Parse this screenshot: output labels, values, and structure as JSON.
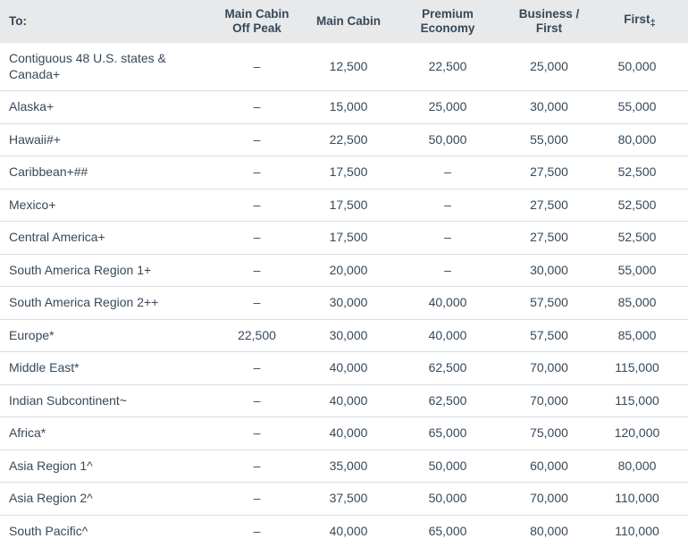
{
  "colors": {
    "header_bg": "#e8e9ea",
    "text": "#36495a",
    "row_border": "#d9dee3"
  },
  "chart_data": {
    "type": "table",
    "columns": [
      {
        "label": "To:"
      },
      {
        "label": "Main Cabin Off Peak"
      },
      {
        "label": "Main Cabin"
      },
      {
        "label": "Premium Economy"
      },
      {
        "label": "Business / First"
      },
      {
        "label": "First",
        "marker": "‡"
      }
    ],
    "empty_value": "–",
    "rows": [
      {
        "destination": "Contiguous 48 U.S. states & Canada+",
        "values": [
          "–",
          "12,500",
          "22,500",
          "25,000",
          "50,000"
        ]
      },
      {
        "destination": "Alaska+",
        "values": [
          "–",
          "15,000",
          "25,000",
          "30,000",
          "55,000"
        ]
      },
      {
        "destination": "Hawaii#+",
        "values": [
          "–",
          "22,500",
          "50,000",
          "55,000",
          "80,000"
        ]
      },
      {
        "destination": "Caribbean+##",
        "values": [
          "–",
          "17,500",
          "–",
          "27,500",
          "52,500"
        ]
      },
      {
        "destination": "Mexico+",
        "values": [
          "–",
          "17,500",
          "–",
          "27,500",
          "52,500"
        ]
      },
      {
        "destination": "Central America+",
        "values": [
          "–",
          "17,500",
          "–",
          "27,500",
          "52,500"
        ]
      },
      {
        "destination": "South America Region 1+",
        "values": [
          "–",
          "20,000",
          "–",
          "30,000",
          "55,000"
        ]
      },
      {
        "destination": "South America Region 2++",
        "values": [
          "–",
          "30,000",
          "40,000",
          "57,500",
          "85,000"
        ]
      },
      {
        "destination": "Europe*",
        "values": [
          "22,500",
          "30,000",
          "40,000",
          "57,500",
          "85,000"
        ]
      },
      {
        "destination": "Middle East*",
        "values": [
          "–",
          "40,000",
          "62,500",
          "70,000",
          "115,000"
        ]
      },
      {
        "destination": "Indian Subcontinent~",
        "values": [
          "–",
          "40,000",
          "62,500",
          "70,000",
          "115,000"
        ]
      },
      {
        "destination": "Africa*",
        "values": [
          "–",
          "40,000",
          "65,000",
          "75,000",
          "120,000"
        ]
      },
      {
        "destination": "Asia Region 1^",
        "values": [
          "–",
          "35,000",
          "50,000",
          "60,000",
          "80,000"
        ]
      },
      {
        "destination": "Asia Region 2^",
        "values": [
          "–",
          "37,500",
          "50,000",
          "70,000",
          "110,000"
        ]
      },
      {
        "destination": "South Pacific^",
        "values": [
          "–",
          "40,000",
          "65,000",
          "80,000",
          "110,000"
        ]
      }
    ]
  }
}
